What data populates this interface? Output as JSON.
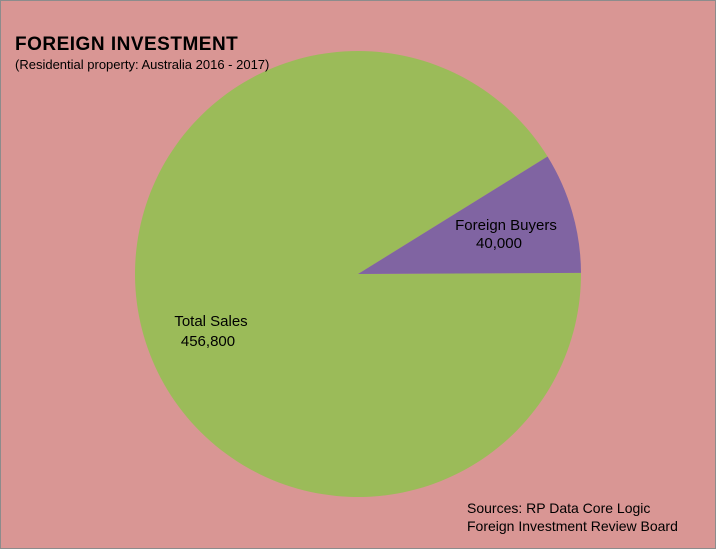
{
  "chart_data": {
    "type": "pie",
    "title": "FOREIGN INVESTMENT",
    "subtitle": "(Residential property: Australia 2016 - 2017)",
    "slices": [
      {
        "label": "Total Sales",
        "value_text": "456,800",
        "value": 456800,
        "color": "#9bbb59"
      },
      {
        "label": "Foreign Buyers",
        "value_text": "40,000",
        "value": 40000,
        "color": "#8064a2"
      }
    ],
    "sources": [
      "Sources: RP Data Core Logic",
      "Foreign Investment Review Board"
    ]
  },
  "colors": {
    "background": "#d99694",
    "total_sales": "#9bbb59",
    "foreign_buyers": "#8064a2"
  }
}
